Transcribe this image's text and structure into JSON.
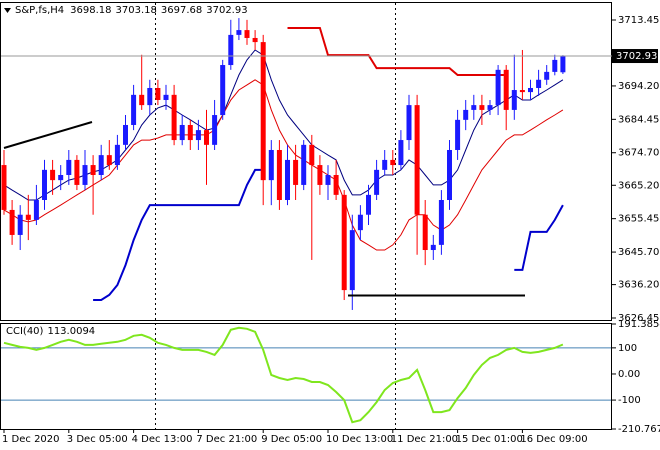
{
  "chart_data": [
    {
      "type": "candlestick",
      "title": "S&P,fs,H4",
      "categories": [
        "1 Dec 2020",
        null,
        null,
        null,
        null,
        null,
        null,
        null,
        "3 Dec 05:00",
        null,
        null,
        null,
        null,
        null,
        null,
        null,
        "4 Dec 13:00",
        null,
        null,
        null,
        null,
        null,
        null,
        null,
        "7 Dec 21:00",
        null,
        null,
        null,
        null,
        null,
        null,
        null,
        "9 Dec 05:00",
        null,
        null,
        null,
        null,
        null,
        null,
        null,
        "10 Dec 13:00",
        null,
        null,
        null,
        null,
        null,
        null,
        null,
        "11 Dec 21:00",
        null,
        null,
        null,
        null,
        null,
        null,
        null,
        "15 Dec 01:00",
        null,
        null,
        null,
        null,
        null,
        null,
        null,
        "16 Dec 09:00",
        null,
        null,
        null,
        null,
        null
      ],
      "open": [
        3671.1,
        3658,
        3650.7,
        3656.6,
        3655.1,
        3660.9,
        3669.7,
        3666.7,
        3668.2,
        3672.6,
        3665.3,
        3671.1,
        3668.2,
        3674,
        3671.1,
        3677,
        3682.8,
        3691.6,
        3688.6,
        3693.6,
        3690.1,
        3691.6,
        3678.4,
        3682.8,
        3678.4,
        3681.3,
        3677,
        3685.7,
        3700.3,
        3709.1,
        3710.5,
        3708.2,
        3707,
        3666.7,
        3675.5,
        3660.9,
        3672.6,
        3665.3,
        3677,
        3671.1,
        3665.3,
        3668.2,
        3662.4,
        3634.6,
        3652.1,
        3656.6,
        3662.4,
        3669.7,
        3672.6,
        3671.1,
        3678.4,
        3688.6,
        3656.6,
        3646.3,
        3647.8,
        3660.9,
        3675.5,
        3684.3,
        3687.2,
        3688.6,
        3687.2,
        3688.6,
        3698.9,
        3687.2,
        3693,
        3692.4,
        3693.6,
        3696,
        3698.3,
        3698.18
      ],
      "high": [
        3675.5,
        3660.9,
        3659.4,
        3662.4,
        3665.3,
        3672.6,
        3672.6,
        3671.1,
        3675.5,
        3674,
        3675.5,
        3674,
        3677,
        3678.4,
        3679.9,
        3685.7,
        3694.5,
        3703.3,
        3696,
        3696,
        3694.5,
        3694.5,
        3685.7,
        3684.3,
        3684.3,
        3687.2,
        3690.1,
        3701.8,
        3713.5,
        3714,
        3713.5,
        3710.5,
        3709.1,
        3678.4,
        3678.4,
        3677,
        3677,
        3678.4,
        3679.9,
        3674,
        3671.1,
        3672.6,
        3663.8,
        3656.6,
        3659.4,
        3665.3,
        3672.6,
        3675.5,
        3675.5,
        3681.3,
        3691.6,
        3691.6,
        3660.9,
        3650.7,
        3663.8,
        3678.4,
        3687.2,
        3690.1,
        3691.6,
        3691.6,
        3690.1,
        3700.3,
        3700.3,
        3703.3,
        3704.7,
        3696,
        3698.9,
        3700.3,
        3703.3,
        3703.18
      ],
      "low": [
        3656.6,
        3647.8,
        3646.3,
        3649.2,
        3653.6,
        3658,
        3662.4,
        3663.8,
        3665.3,
        3663.8,
        3663.8,
        3656.6,
        3666.7,
        3669.7,
        3669.7,
        3675.5,
        3681.3,
        3687.2,
        3685.7,
        3688.6,
        3687.2,
        3676.9,
        3676.9,
        3675.5,
        3675.5,
        3665.3,
        3675.5,
        3684.3,
        3698.9,
        3707.6,
        3706.2,
        3704.7,
        3659.4,
        3659.4,
        3658,
        3659.4,
        3660.9,
        3663.8,
        3643.4,
        3662.4,
        3660.9,
        3660.9,
        3631.7,
        3628.8,
        3649.2,
        3653.6,
        3660.9,
        3668.2,
        3668.2,
        3669.7,
        3675.5,
        3644.9,
        3641.9,
        3643.4,
        3644.9,
        3658,
        3672.6,
        3681.3,
        3684.3,
        3682.8,
        3685.7,
        3685.7,
        3681.3,
        3684.3,
        3690.1,
        3690.1,
        3691.3,
        3694.5,
        3697.3,
        3697.68
      ],
      "close": [
        3658,
        3650.7,
        3656.6,
        3655.1,
        3660.9,
        3669.7,
        3666.7,
        3668.2,
        3672.6,
        3665.3,
        3671.1,
        3668.2,
        3674,
        3671.1,
        3677,
        3682.8,
        3691.6,
        3688.6,
        3693.6,
        3690.1,
        3691.6,
        3678.4,
        3682.8,
        3678.4,
        3681.3,
        3677,
        3685.7,
        3700.3,
        3709.1,
        3710.5,
        3708.2,
        3707,
        3666.7,
        3675.5,
        3660.9,
        3672.6,
        3665.3,
        3677,
        3671.1,
        3665.3,
        3668.2,
        3662.4,
        3634.6,
        3652.1,
        3656.6,
        3662.4,
        3669.7,
        3672.6,
        3671.1,
        3678.4,
        3688.6,
        3656.6,
        3646.3,
        3647.8,
        3660.9,
        3675.5,
        3684.3,
        3687.2,
        3688.6,
        3687.2,
        3688.6,
        3698.9,
        3687.2,
        3693,
        3692.4,
        3693.6,
        3696,
        3698.3,
        3701.8,
        3702.93
      ],
      "up_color": "#1a1aff",
      "down_color": "#ff0000",
      "series": [
        {
          "color": "#000080",
          "width": 1,
          "values": [
            3665.3,
            3663.8,
            3662.4,
            3660.9,
            3660.9,
            3662.4,
            3663.8,
            3665.3,
            3666.7,
            3667.3,
            3668.2,
            3669.1,
            3669.7,
            3671.1,
            3672.6,
            3675.5,
            3678.4,
            3682.8,
            3685.7,
            3687.8,
            3688.6,
            3687.2,
            3685.7,
            3684.3,
            3682.8,
            3681.3,
            3681.9,
            3685.7,
            3691.6,
            3697.4,
            3701.8,
            3704.7,
            3703.2,
            3696,
            3690.1,
            3685.7,
            3682.8,
            3679.9,
            3677,
            3675.5,
            3674,
            3672.6,
            3666.7,
            3662.4,
            3662.4,
            3663.8,
            3666.7,
            3668.2,
            3668.2,
            3669.7,
            3672.6,
            3671.1,
            3668.2,
            3665.3,
            3665.3,
            3666.7,
            3669.7,
            3675.5,
            3681.3,
            3685.7,
            3687.2,
            3688.6,
            3690.1,
            3691.6,
            3690.1,
            3690.1,
            3691.6,
            3693,
            3694.5,
            3696
          ]
        },
        {
          "color": "#e00000",
          "width": 1,
          "values": [
            3658,
            3656.6,
            3655.1,
            3654.5,
            3655.1,
            3656.6,
            3658,
            3659.4,
            3660.9,
            3662.4,
            3663.8,
            3665.3,
            3666.7,
            3668.2,
            3671.1,
            3674,
            3677,
            3678.4,
            3678.4,
            3679,
            3679.9,
            3679.9,
            3679.9,
            3679.9,
            3679.9,
            3679.9,
            3681.3,
            3685.7,
            3690.1,
            3693,
            3694.5,
            3696,
            3694.5,
            3687.2,
            3681.3,
            3677,
            3674,
            3672.6,
            3671.1,
            3669.7,
            3668.2,
            3666.7,
            3660.9,
            3653.6,
            3649.2,
            3647.8,
            3646.3,
            3646.3,
            3647.8,
            3650.7,
            3655.1,
            3656.6,
            3656.6,
            3653.6,
            3652.1,
            3653.6,
            3656.6,
            3660.9,
            3665.3,
            3669.7,
            3672.6,
            3675.5,
            3678.4,
            3679.9,
            3679.9,
            3681.3,
            3682.8,
            3684.3,
            3685.7,
            3687.2
          ]
        },
        {
          "color": "#0000cc",
          "width": 2,
          "values": [
            null,
            null,
            null,
            null,
            null,
            null,
            null,
            null,
            null,
            null,
            null,
            3631.7,
            3631.7,
            3633.2,
            3636.1,
            3641.9,
            3649.2,
            3655.1,
            3659.4,
            3659.4,
            3659.4,
            3659.4,
            3659.4,
            3659.4,
            3659.4,
            3659.4,
            3659.4,
            3659.4,
            3659.4,
            3659.4,
            3665.3,
            3669.7,
            3669.7,
            null,
            null,
            null,
            null,
            null,
            null,
            null,
            null,
            null,
            null,
            null,
            null,
            null,
            null,
            null,
            null,
            null,
            null,
            null,
            null,
            null,
            null,
            null,
            null,
            null,
            null,
            null,
            null,
            null,
            null,
            3640.5,
            3640.5,
            3651.6,
            3651.6,
            3651.6,
            3655.1,
            3659.4
          ]
        },
        {
          "color": "#e00000",
          "width": 2,
          "values": [
            null,
            null,
            null,
            null,
            null,
            null,
            null,
            null,
            null,
            null,
            null,
            null,
            null,
            null,
            null,
            null,
            null,
            null,
            null,
            null,
            null,
            null,
            null,
            null,
            null,
            null,
            null,
            null,
            null,
            null,
            null,
            null,
            null,
            null,
            null,
            3711.1,
            3711.1,
            3711.1,
            3711.1,
            3711.1,
            3703.2,
            3703.2,
            3703.2,
            3703.2,
            3703.2,
            3703.2,
            3699.4,
            3699.4,
            3699.4,
            3699.4,
            3699.4,
            3699.4,
            3699.4,
            3699.4,
            3699.4,
            3699.4,
            3697.4,
            3697.4,
            3697.4,
            3697.4,
            3697.4,
            3697.4,
            3697.4,
            null,
            null,
            null,
            null,
            null,
            null,
            null
          ]
        }
      ],
      "ylim": [
        3625.87,
        3718.41
      ],
      "yticks": [
        3713.45,
        {
          "value": 3694.2,
          "label": "3694.20"
        },
        3684.45,
        {
          "value": 3674.7,
          "label": "3674.70"
        },
        {
          "value": 3665.2,
          "label": "3665.20"
        },
        3655.45,
        {
          "value": 3645.7,
          "label": "3645.70"
        },
        {
          "value": 3636.2,
          "label": "3636.20"
        },
        3626.45
      ],
      "grid": false
    },
    {
      "type": "line",
      "title": "CCI(40)",
      "color": "#7fe61e",
      "values": [
        119.2,
        111.5,
        103.8,
        100,
        92.3,
        100,
        111.5,
        123.1,
        130.8,
        123.1,
        111.5,
        111.5,
        115.4,
        119.2,
        123.1,
        130.8,
        146.2,
        150,
        138.5,
        119.2,
        111.5,
        100,
        92.3,
        92.3,
        92.3,
        84.6,
        73.1,
        111.5,
        169.2,
        176.9,
        173.1,
        161.5,
        92.3,
        -3.8,
        -15.4,
        -23.1,
        -15.4,
        -19.2,
        -30.8,
        -30.8,
        -42.3,
        -69.2,
        -100,
        -184.6,
        -176.9,
        -146.2,
        -107.7,
        -61.5,
        -34.6,
        -23.1,
        -15.4,
        15.4,
        -61.5,
        -146.2,
        -146.2,
        -138.5,
        -92.3,
        -53.8,
        -3.8,
        34.6,
        61.5,
        73.1,
        92.3,
        100,
        84.6,
        80.8,
        84.6,
        92.3,
        100,
        113.0094
      ],
      "ylim": [
        -210.7677,
        191.3854
      ],
      "yticks": [
        191.3854,
        100,
        {
          "value": 0,
          "label": "0.00"
        },
        -100,
        -210.7677
      ],
      "levels": [
        100,
        -100
      ],
      "level_color": "#4682b4"
    }
  ]
}
